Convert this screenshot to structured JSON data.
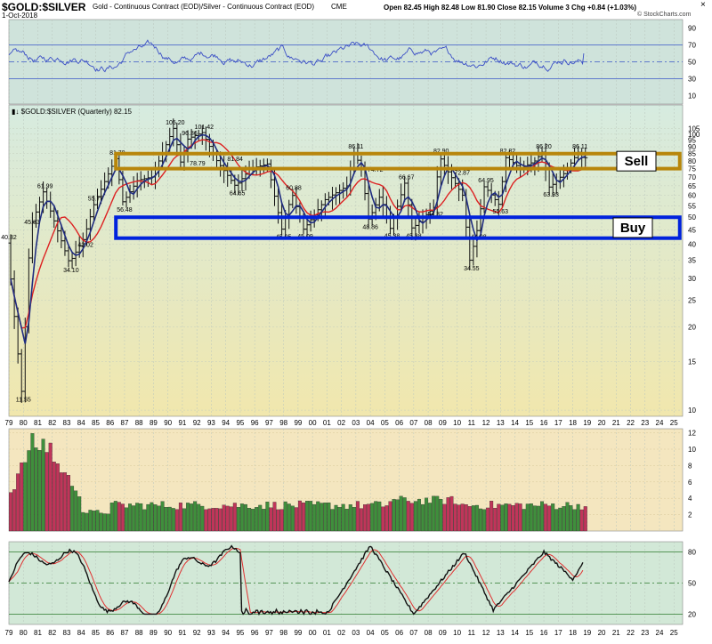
{
  "header": {
    "symbol": "$GOLD:$SILVER",
    "description": "Gold - Continuous Contract (EOD)/Silver - Continuous Contract (EOD)",
    "exchange": "CME",
    "date": "1-Oct-2018",
    "ohlc": "Open 82.45  High 82.48  Low 81.90  Close 82.15  Volume 3  Chg +0.84 (+1.03%)",
    "watermark": "© StockCharts.com"
  },
  "colors": {
    "rsi_bg": "#cfe3db",
    "price_bg_top": "#d6ebe0",
    "price_bg_bottom": "#f1e7ad",
    "vol_bg": "#f4e6bf",
    "stoch_bg": "#d2e8d7",
    "bull": "#3f8f3c",
    "bear": "#c0355a",
    "sell_box": "#b8860b",
    "buy_box": "#0022dd",
    "ma_fast": "#1f2c80",
    "ma_slow": "#dd2222",
    "rsi_line": "#3b4fc6",
    "stoch_k": "#111111",
    "stoch_d": "#e03030"
  },
  "chart_data": [
    {
      "type": "line",
      "name": "rsi",
      "ylim": [
        0,
        100
      ],
      "yticks": [
        10,
        30,
        50,
        70,
        90
      ],
      "reference_levels": [
        30,
        50,
        70
      ],
      "years": [
        1979,
        2019
      ],
      "pattern": "oscillating",
      "last_value": 60
    },
    {
      "type": "candlestick",
      "title": "$GOLD:$SILVER (Quarterly) 82.15",
      "title_prefix": "▮↓",
      "scale": "log",
      "ylim": [
        9.5,
        115
      ],
      "yticks": [
        10,
        15,
        20,
        25,
        30,
        35,
        40,
        45,
        50,
        55,
        60,
        65,
        70,
        75,
        80,
        85,
        90,
        95,
        100,
        105
      ],
      "xticks": [
        "79",
        "80",
        "81",
        "82",
        "83",
        "84",
        "85",
        "86",
        "87",
        "88",
        "89",
        "90",
        "91",
        "92",
        "93",
        "94",
        "95",
        "96",
        "97",
        "98",
        "99",
        "00",
        "01",
        "02",
        "03",
        "04",
        "05",
        "06",
        "07",
        "08",
        "09",
        "10",
        "11",
        "12",
        "13",
        "14",
        "15",
        "16",
        "17",
        "18",
        "19",
        "20",
        "21",
        "22",
        "23",
        "24",
        "25"
      ],
      "x_years": [
        1979,
        2025
      ],
      "anchors": [
        [
          1979.0,
          40.32
        ],
        [
          1980.0,
          11.55
        ],
        [
          1980.6,
          45.83
        ],
        [
          1981.5,
          61.99
        ],
        [
          1983.3,
          34.1
        ],
        [
          1984.3,
          42.02
        ],
        [
          1985.0,
          55.77
        ],
        [
          1986.5,
          81.7
        ],
        [
          1987.0,
          56.48
        ],
        [
          1988.0,
          68
        ],
        [
          1989.0,
          70
        ],
        [
          1990.5,
          105.2
        ],
        [
          1991.0,
          78.79
        ],
        [
          1991.5,
          96.36
        ],
        [
          1992.5,
          101.42
        ],
        [
          1993.5,
          80
        ],
        [
          1994.8,
          64.65
        ],
        [
          1995.8,
          75
        ],
        [
          1997.0,
          78
        ],
        [
          1998.0,
          45.05
        ],
        [
          1998.7,
          60.88
        ],
        [
          1999.5,
          45.09
        ],
        [
          2001.0,
          58
        ],
        [
          2002.5,
          65
        ],
        [
          2003.0,
          86.11
        ],
        [
          2003.5,
          74.72
        ],
        [
          2004.0,
          48.86
        ],
        [
          2004.8,
          60
        ],
        [
          2005.5,
          45.38
        ],
        [
          2006.5,
          66.67
        ],
        [
          2007.0,
          45.38
        ],
        [
          2008.5,
          54.32
        ],
        [
          2008.9,
          82.9
        ],
        [
          2009.5,
          72.87
        ],
        [
          2010.5,
          60
        ],
        [
          2011.0,
          34.55
        ],
        [
          2011.5,
          44.98
        ],
        [
          2012.0,
          64.95
        ],
        [
          2013.0,
          55.63
        ],
        [
          2013.5,
          82.82
        ],
        [
          2014.5,
          75
        ],
        [
          2015.5,
          80
        ],
        [
          2016.0,
          86.2
        ],
        [
          2016.5,
          63.93
        ],
        [
          2017.5,
          72
        ],
        [
          2018.5,
          86.11
        ],
        [
          2018.75,
          82.15
        ]
      ],
      "price_labels": [
        {
          "x": 1979.0,
          "v": 40.32,
          "text": "40.32",
          "pos": "above"
        },
        {
          "x": 1980.0,
          "v": 11.55,
          "text": "11.55",
          "pos": "below"
        },
        {
          "x": 1980.6,
          "v": 45.83,
          "text": "45.83",
          "pos": "above"
        },
        {
          "x": 1981.5,
          "v": 61.99,
          "text": "61.99",
          "pos": "above"
        },
        {
          "x": 1983.3,
          "v": 34.1,
          "text": "34.10",
          "pos": "below"
        },
        {
          "x": 1984.3,
          "v": 42.02,
          "text": "42.02",
          "pos": "below"
        },
        {
          "x": 1985.0,
          "v": 55.77,
          "text": "55.77",
          "pos": "above"
        },
        {
          "x": 1986.5,
          "v": 81.7,
          "text": "81.70",
          "pos": "above"
        },
        {
          "x": 1987.0,
          "v": 56.48,
          "text": "56.48",
          "pos": "below"
        },
        {
          "x": 1990.5,
          "v": 105.2,
          "text": "105.20",
          "pos": "above"
        },
        {
          "x": 1991.2,
          "v": 78.79,
          "text": "78.79",
          "pos": "right"
        },
        {
          "x": 1991.5,
          "v": 96.36,
          "text": "96.36",
          "pos": "above"
        },
        {
          "x": 1992.5,
          "v": 101.42,
          "text": "101.42",
          "pos": "above"
        },
        {
          "x": 1993.8,
          "v": 81.84,
          "text": "81.84",
          "pos": "right"
        },
        {
          "x": 1994.8,
          "v": 64.65,
          "text": "64.65",
          "pos": "below"
        },
        {
          "x": 1998.0,
          "v": 45.05,
          "text": "45.05",
          "pos": "below"
        },
        {
          "x": 1998.7,
          "v": 60.88,
          "text": "60.88",
          "pos": "above"
        },
        {
          "x": 1999.5,
          "v": 45.09,
          "text": "45.09",
          "pos": "below"
        },
        {
          "x": 2003.0,
          "v": 86.11,
          "text": "86.11",
          "pos": "above"
        },
        {
          "x": 2003.5,
          "v": 74.72,
          "text": "74.72",
          "pos": "right"
        },
        {
          "x": 2004.0,
          "v": 48.86,
          "text": "48.86",
          "pos": "below"
        },
        {
          "x": 2005.5,
          "v": 45.38,
          "text": "45.38",
          "pos": "below"
        },
        {
          "x": 2006.5,
          "v": 66.67,
          "text": "66.67",
          "pos": "above"
        },
        {
          "x": 2007.0,
          "v": 45.38,
          "text": "45.38",
          "pos": "below"
        },
        {
          "x": 2008.5,
          "v": 54.32,
          "text": "54.32",
          "pos": "below"
        },
        {
          "x": 2008.9,
          "v": 82.9,
          "text": "82.90",
          "pos": "above"
        },
        {
          "x": 2009.5,
          "v": 72.87,
          "text": "72.87",
          "pos": "right"
        },
        {
          "x": 2011.0,
          "v": 34.55,
          "text": "34.55",
          "pos": "below"
        },
        {
          "x": 2011.5,
          "v": 44.98,
          "text": "44.98",
          "pos": "below"
        },
        {
          "x": 2012.0,
          "v": 64.95,
          "text": "64.95",
          "pos": "above"
        },
        {
          "x": 2013.0,
          "v": 55.63,
          "text": "55.63",
          "pos": "below"
        },
        {
          "x": 2013.5,
          "v": 82.82,
          "text": "82.82",
          "pos": "above"
        },
        {
          "x": 2016.0,
          "v": 86.2,
          "text": "86.20",
          "pos": "above"
        },
        {
          "x": 2016.5,
          "v": 63.93,
          "text": "63.93",
          "pos": "below"
        },
        {
          "x": 2018.5,
          "v": 86.11,
          "text": "86.11",
          "pos": "above"
        }
      ],
      "ma_fast_period": 4,
      "ma_slow_period": 10,
      "zones": [
        {
          "name": "sell",
          "label": "Sell",
          "low": 75,
          "high": 85,
          "from_year": 1986.4,
          "to_year": 2025.4
        },
        {
          "name": "buy",
          "label": "Buy",
          "low": 42,
          "high": 50,
          "from_year": 1986.4,
          "to_year": 2025.4
        }
      ]
    },
    {
      "type": "bar",
      "name": "volume",
      "ylim": [
        0,
        12.5
      ],
      "yticks": [
        2,
        4,
        6,
        8,
        10,
        12
      ],
      "pattern": "declining-then-flat",
      "peak": 12,
      "last_value": 3
    },
    {
      "type": "line",
      "name": "stochastic",
      "ylim": [
        10,
        90
      ],
      "yticks": [
        20,
        50,
        80
      ],
      "reference_levels": [
        20,
        50,
        80
      ],
      "last_value": 70
    }
  ]
}
